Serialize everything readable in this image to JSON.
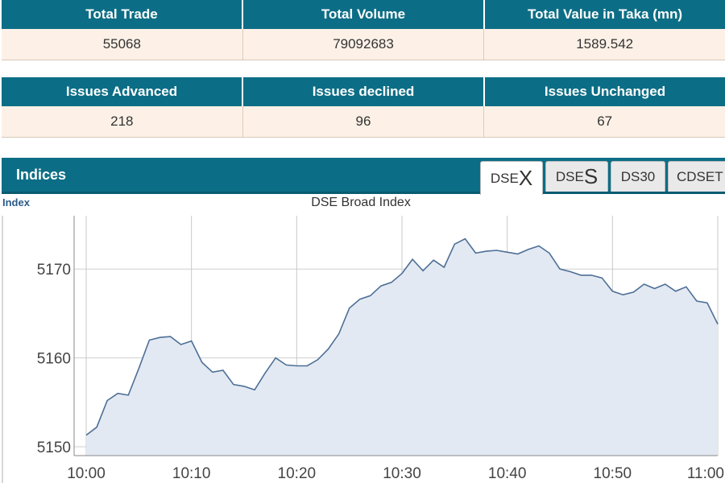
{
  "summary1": {
    "headers": [
      "Total Trade",
      "Total Volume",
      "Total Value in Taka (mn)"
    ],
    "values": [
      "55068",
      "79092683",
      "1589.542"
    ]
  },
  "summary2": {
    "headers": [
      "Issues Advanced",
      "Issues declined",
      "Issues Unchanged"
    ],
    "values": [
      "218",
      "96",
      "67"
    ]
  },
  "indices": {
    "title": "Indices",
    "tabs": [
      {
        "prefix": "DSE",
        "suffix": "X",
        "active": true
      },
      {
        "prefix": "DSE",
        "suffix": "S",
        "active": false
      },
      {
        "prefix": "DS30",
        "suffix": "",
        "active": false
      },
      {
        "prefix": "CDSET",
        "suffix": "",
        "active": false
      }
    ]
  },
  "chart_data": {
    "type": "area",
    "title": "DSE Broad Index",
    "ylabel": "Index",
    "xlabel": "",
    "x_ticks": [
      "10:00",
      "10:10",
      "10:20",
      "10:30",
      "10:40",
      "10:50",
      "11:00"
    ],
    "y_ticks": [
      5150,
      5160,
      5170
    ],
    "xlim": [
      0,
      60
    ],
    "ylim": [
      5149,
      5176
    ],
    "grid": true,
    "line_color": "#4d6f96",
    "fill_color": "#e3e9f2",
    "series": [
      {
        "x": [
          0,
          1,
          2,
          3,
          4,
          5,
          6,
          7,
          8,
          9,
          10,
          11,
          12,
          13,
          14,
          15,
          16,
          17,
          18,
          19,
          20,
          21,
          22,
          23,
          24,
          25,
          26,
          27,
          28,
          29,
          30,
          31,
          32,
          33,
          34,
          35,
          36,
          37,
          38,
          39,
          40,
          41,
          42,
          43,
          44,
          45,
          46,
          47,
          48,
          49,
          50,
          51,
          52,
          53,
          54,
          55,
          56,
          57,
          58,
          59,
          60
        ],
        "y": [
          5151.3,
          5152.2,
          5155.2,
          5156.0,
          5155.8,
          5158.8,
          5162.0,
          5162.3,
          5162.4,
          5161.5,
          5161.9,
          5159.5,
          5158.4,
          5158.6,
          5157.0,
          5156.8,
          5156.4,
          5158.3,
          5160.0,
          5159.2,
          5159.1,
          5159.1,
          5159.8,
          5161.0,
          5162.7,
          5165.6,
          5166.6,
          5167.0,
          5168.1,
          5168.5,
          5169.5,
          5171.1,
          5169.8,
          5171.0,
          5170.2,
          5172.8,
          5173.4,
          5171.8,
          5172.0,
          5172.1,
          5171.9,
          5171.7,
          5172.2,
          5172.6,
          5171.8,
          5170.0,
          5169.7,
          5169.3,
          5169.3,
          5169.0,
          5167.5,
          5167.1,
          5167.4,
          5168.3,
          5167.8,
          5168.3,
          5167.5,
          5168.0,
          5166.4,
          5166.2,
          5163.8
        ]
      }
    ]
  }
}
